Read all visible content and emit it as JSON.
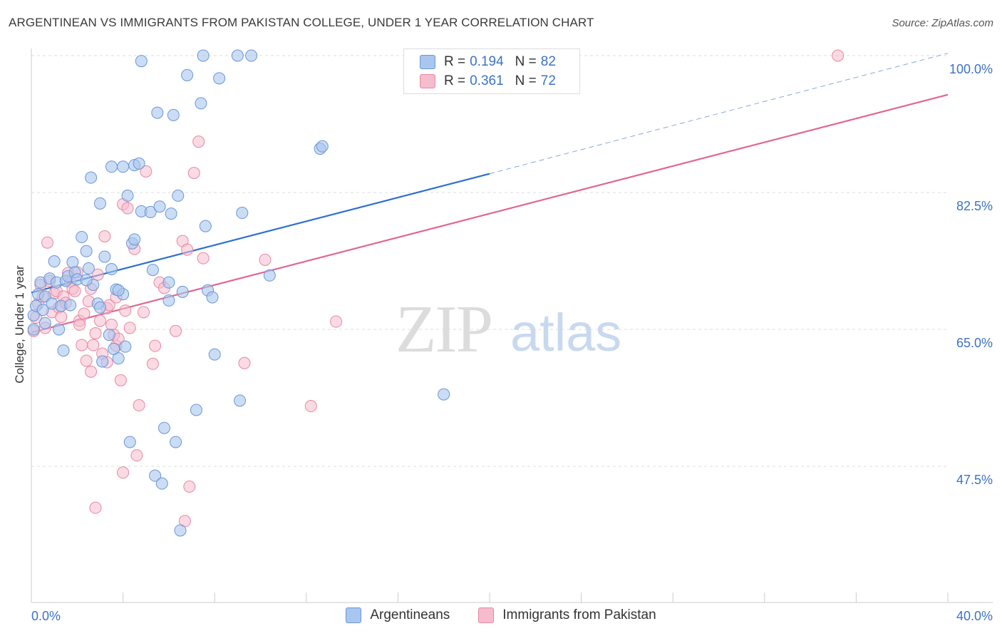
{
  "title": "ARGENTINEAN VS IMMIGRANTS FROM PAKISTAN COLLEGE, UNDER 1 YEAR CORRELATION CHART",
  "source": "Source: ZipAtlas.com",
  "watermark": {
    "zip": "ZIP",
    "atlas": "atlas"
  },
  "legend": {
    "rows": [
      {
        "r_label": "R =",
        "r_value": "0.194",
        "n_label": "N =",
        "n_value": "82"
      },
      {
        "r_label": "R =",
        "r_value": "0.361",
        "n_label": "N =",
        "n_value": "72"
      }
    ]
  },
  "colors": {
    "blue_fill": "#a9c6ef",
    "blue_stroke": "#6b96d6",
    "blue_line": "#2c6fce",
    "pink_fill": "#f5bccd",
    "pink_stroke": "#e8889f",
    "pink_line": "#e06690",
    "tick_label": "#3b73c4",
    "grid": "#dddddd"
  },
  "chart_data": {
    "type": "scatter",
    "title": "ARGENTINEAN VS IMMIGRANTS FROM PAKISTAN COLLEGE, UNDER 1 YEAR CORRELATION CHART",
    "xlabel": "",
    "ylabel": "College, Under 1 year",
    "xlim": [
      0,
      40
    ],
    "ylim": [
      33,
      102
    ],
    "x_tick_labels": [
      "0.0%",
      "40.0%"
    ],
    "y_ticks": [
      47.5,
      65.0,
      82.5,
      100.0
    ],
    "y_tick_labels": [
      "47.5%",
      "65.0%",
      "82.5%",
      "100.0%"
    ],
    "grid": true,
    "legend_position": "top-center",
    "series": [
      {
        "name": "Argentineans",
        "r": 0.194,
        "n": 82,
        "trend": {
          "x0": 0.0,
          "y0": 69.7,
          "x1": 20.0,
          "y1": 84.9,
          "dash_to_x": 40.0,
          "dash_to_y": 100.3
        },
        "points": [
          [
            0.1,
            65.0
          ],
          [
            0.1,
            66.8
          ],
          [
            0.2,
            68.0
          ],
          [
            0.3,
            69.5
          ],
          [
            0.4,
            71.0
          ],
          [
            0.5,
            67.5
          ],
          [
            0.6,
            65.8
          ],
          [
            0.6,
            69.2
          ],
          [
            0.8,
            71.5
          ],
          [
            0.9,
            68.3
          ],
          [
            1.0,
            73.7
          ],
          [
            1.1,
            71.0
          ],
          [
            1.2,
            65.0
          ],
          [
            1.3,
            68.0
          ],
          [
            1.4,
            62.3
          ],
          [
            1.5,
            71.2
          ],
          [
            1.6,
            71.8
          ],
          [
            1.7,
            68.1
          ],
          [
            1.8,
            73.6
          ],
          [
            1.9,
            72.3
          ],
          [
            2.0,
            71.4
          ],
          [
            2.2,
            76.8
          ],
          [
            2.4,
            75.0
          ],
          [
            2.5,
            72.8
          ],
          [
            2.6,
            84.4
          ],
          [
            2.7,
            70.7
          ],
          [
            2.9,
            68.3
          ],
          [
            3.0,
            67.8
          ],
          [
            3.0,
            81.1
          ],
          [
            3.1,
            60.9
          ],
          [
            3.2,
            74.3
          ],
          [
            3.4,
            64.3
          ],
          [
            3.5,
            85.8
          ],
          [
            3.5,
            72.7
          ],
          [
            3.6,
            62.5
          ],
          [
            3.7,
            70.1
          ],
          [
            3.8,
            61.3
          ],
          [
            4.0,
            85.8
          ],
          [
            4.0,
            69.5
          ],
          [
            4.1,
            62.8
          ],
          [
            4.2,
            82.1
          ],
          [
            4.3,
            50.6
          ],
          [
            4.4,
            76.0
          ],
          [
            4.5,
            86.0
          ],
          [
            4.5,
            76.5
          ],
          [
            4.7,
            86.2
          ],
          [
            4.8,
            80.1
          ],
          [
            4.8,
            99.3
          ],
          [
            5.2,
            80.0
          ],
          [
            5.3,
            72.6
          ],
          [
            5.4,
            46.3
          ],
          [
            5.5,
            92.7
          ],
          [
            5.6,
            80.7
          ],
          [
            5.7,
            45.3
          ],
          [
            5.8,
            52.4
          ],
          [
            6.0,
            71.0
          ],
          [
            6.1,
            79.8
          ],
          [
            6.2,
            92.4
          ],
          [
            6.3,
            50.6
          ],
          [
            6.4,
            82.1
          ],
          [
            6.5,
            39.3
          ],
          [
            6.6,
            69.8
          ],
          [
            6.8,
            97.5
          ],
          [
            7.2,
            54.7
          ],
          [
            7.4,
            93.9
          ],
          [
            7.5,
            100.0
          ],
          [
            7.6,
            78.2
          ],
          [
            7.7,
            70.0
          ],
          [
            7.9,
            69.1
          ],
          [
            8.0,
            61.8
          ],
          [
            8.2,
            97.1
          ],
          [
            9.0,
            100.0
          ],
          [
            9.1,
            55.9
          ],
          [
            9.2,
            79.9
          ],
          [
            9.6,
            100.0
          ],
          [
            10.4,
            71.9
          ],
          [
            12.6,
            88.1
          ],
          [
            12.7,
            88.4
          ],
          [
            18.0,
            56.7
          ],
          [
            6.0,
            68.7
          ],
          [
            2.4,
            71.3
          ],
          [
            3.8,
            70.0
          ]
        ]
      },
      {
        "name": "Immigrants from Pakistan",
        "r": 0.361,
        "n": 72,
        "trend": {
          "x0": 0.0,
          "y0": 64.6,
          "x1": 40.0,
          "y1": 95.0
        },
        "points": [
          [
            0.1,
            64.8
          ],
          [
            0.2,
            66.5
          ],
          [
            0.3,
            68.3
          ],
          [
            0.4,
            70.7
          ],
          [
            0.5,
            69.2
          ],
          [
            0.6,
            65.2
          ],
          [
            0.7,
            76.1
          ],
          [
            0.8,
            71.2
          ],
          [
            0.9,
            67.2
          ],
          [
            1.0,
            69.6
          ],
          [
            1.1,
            69.9
          ],
          [
            1.2,
            67.8
          ],
          [
            1.3,
            66.6
          ],
          [
            1.4,
            69.2
          ],
          [
            1.5,
            68.4
          ],
          [
            1.6,
            72.2
          ],
          [
            1.7,
            71.1
          ],
          [
            1.8,
            70.2
          ],
          [
            1.9,
            69.9
          ],
          [
            2.0,
            72.3
          ],
          [
            2.1,
            66.1
          ],
          [
            2.1,
            65.6
          ],
          [
            2.2,
            63.0
          ],
          [
            2.3,
            67.0
          ],
          [
            2.4,
            61.0
          ],
          [
            2.5,
            68.6
          ],
          [
            2.6,
            59.6
          ],
          [
            2.7,
            63.0
          ],
          [
            2.8,
            64.5
          ],
          [
            2.8,
            42.2
          ],
          [
            2.9,
            72.0
          ],
          [
            3.0,
            66.1
          ],
          [
            3.1,
            61.9
          ],
          [
            3.2,
            76.9
          ],
          [
            3.3,
            67.7
          ],
          [
            3.4,
            68.1
          ],
          [
            3.5,
            65.6
          ],
          [
            3.6,
            64.3
          ],
          [
            3.7,
            62.9
          ],
          [
            3.7,
            69.1
          ],
          [
            3.8,
            63.8
          ],
          [
            3.9,
            58.5
          ],
          [
            4.0,
            81.0
          ],
          [
            4.0,
            46.7
          ],
          [
            4.2,
            80.5
          ],
          [
            4.3,
            65.2
          ],
          [
            4.5,
            75.3
          ],
          [
            4.6,
            48.9
          ],
          [
            4.7,
            55.3
          ],
          [
            4.9,
            67.2
          ],
          [
            5.0,
            85.2
          ],
          [
            5.3,
            60.6
          ],
          [
            5.4,
            62.9
          ],
          [
            5.6,
            71.0
          ],
          [
            5.8,
            70.3
          ],
          [
            6.3,
            64.8
          ],
          [
            6.6,
            76.3
          ],
          [
            6.7,
            40.5
          ],
          [
            6.8,
            75.2
          ],
          [
            6.9,
            44.9
          ],
          [
            7.1,
            85.0
          ],
          [
            7.3,
            89.0
          ],
          [
            7.5,
            74.1
          ],
          [
            9.3,
            60.7
          ],
          [
            10.2,
            73.9
          ],
          [
            12.2,
            55.2
          ],
          [
            13.3,
            66.0
          ],
          [
            16.8,
            97.1
          ],
          [
            35.2,
            100.0
          ],
          [
            2.6,
            70.2
          ],
          [
            4.1,
            67.4
          ],
          [
            3.3,
            60.8
          ]
        ]
      }
    ]
  },
  "axis": {
    "x_min_label": "0.0%",
    "x_max_label": "40.0%",
    "ylabel": "College, Under 1 year"
  },
  "bottom_legend": {
    "items": [
      "Argentineans",
      "Immigrants from Pakistan"
    ]
  }
}
